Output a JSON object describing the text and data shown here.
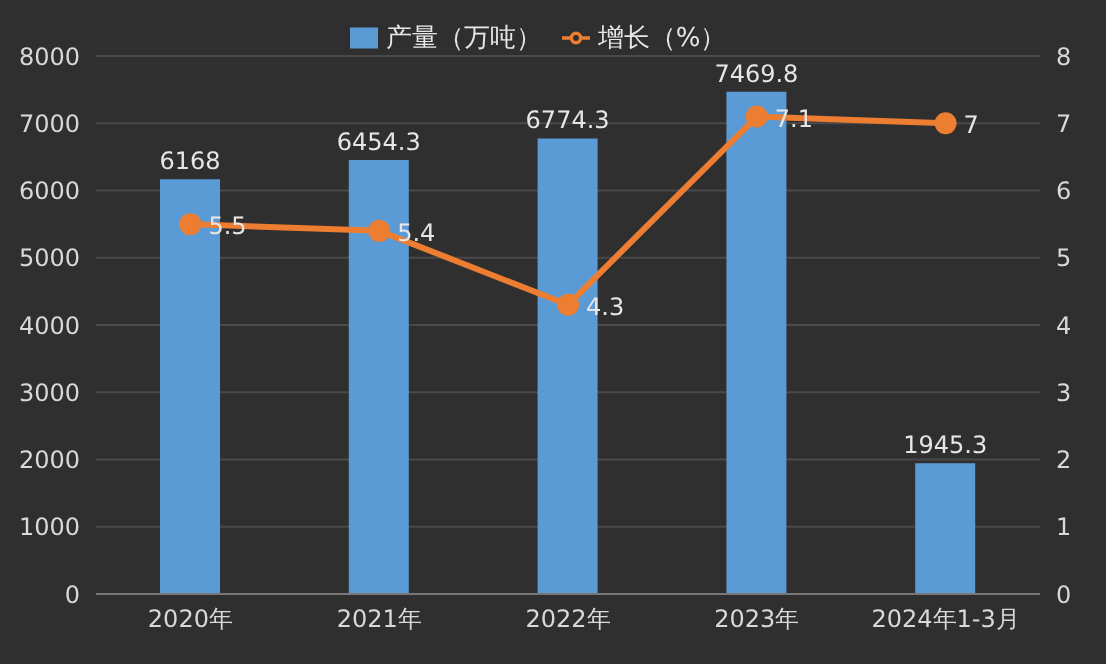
{
  "chart_data": {
    "type": "bar",
    "categories": [
      "2020年",
      "2021年",
      "2022年",
      "2023年",
      "2024年1-3月"
    ],
    "series": [
      {
        "name": "产量（万吨）",
        "color": "#5b9bd5",
        "values": [
          6168,
          6454.3,
          6774.3,
          7469.8,
          1945.3
        ]
      },
      {
        "name": "增长（%）",
        "type": "line",
        "axis": "y2",
        "color": "#ed7d31",
        "values": [
          5.5,
          5.4,
          4.3,
          7.1,
          7
        ]
      }
    ],
    "ylim": [
      0,
      8000
    ],
    "yticks": [
      0,
      1000,
      2000,
      3000,
      4000,
      5000,
      6000,
      7000,
      8000
    ],
    "y2lim": [
      0,
      8
    ],
    "y2ticks": [
      0,
      1,
      2,
      3,
      4,
      5,
      6,
      7,
      8
    ],
    "grid": "y",
    "legend": "top",
    "marker": "circle",
    "data_labels": true
  }
}
